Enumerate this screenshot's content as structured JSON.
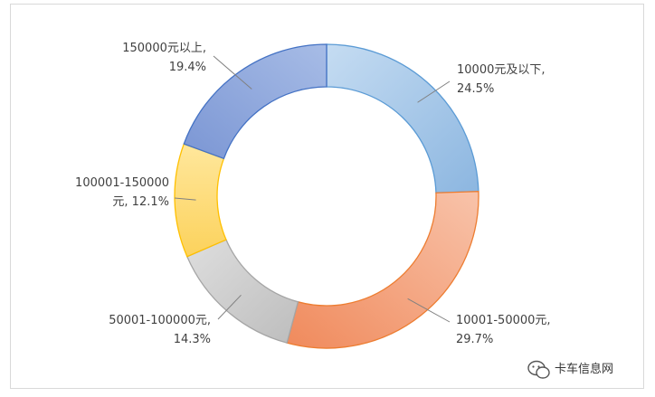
{
  "chart_data": {
    "type": "pie",
    "variant": "donut",
    "title": "",
    "slices": [
      {
        "label_lines": [
          "10000元及以下,",
          "24.5%"
        ],
        "category": "10000元及以下",
        "value": 24.5,
        "color": "#9DC3E6"
      },
      {
        "label_lines": [
          "10001-50000元,",
          "29.7%"
        ],
        "category": "10001-50000元",
        "value": 29.7,
        "color": "#F4A582"
      },
      {
        "label_lines": [
          "50001-100000元,",
          "14.3%"
        ],
        "category": "50001-100000元",
        "value": 14.3,
        "color": "#C9C9C9"
      },
      {
        "label_lines": [
          "100001-150000",
          "元, 12.1%"
        ],
        "category": "100001-150000元",
        "value": 12.1,
        "color": "#FFD966"
      },
      {
        "label_lines": [
          "150000元以上,",
          "19.4%"
        ],
        "category": "150000元以上",
        "value": 19.4,
        "color": "#8EA9DB"
      }
    ],
    "start_angle_deg": 0,
    "direction": "clockwise",
    "legend": "none"
  },
  "watermark": {
    "text": "卡车信息网"
  }
}
